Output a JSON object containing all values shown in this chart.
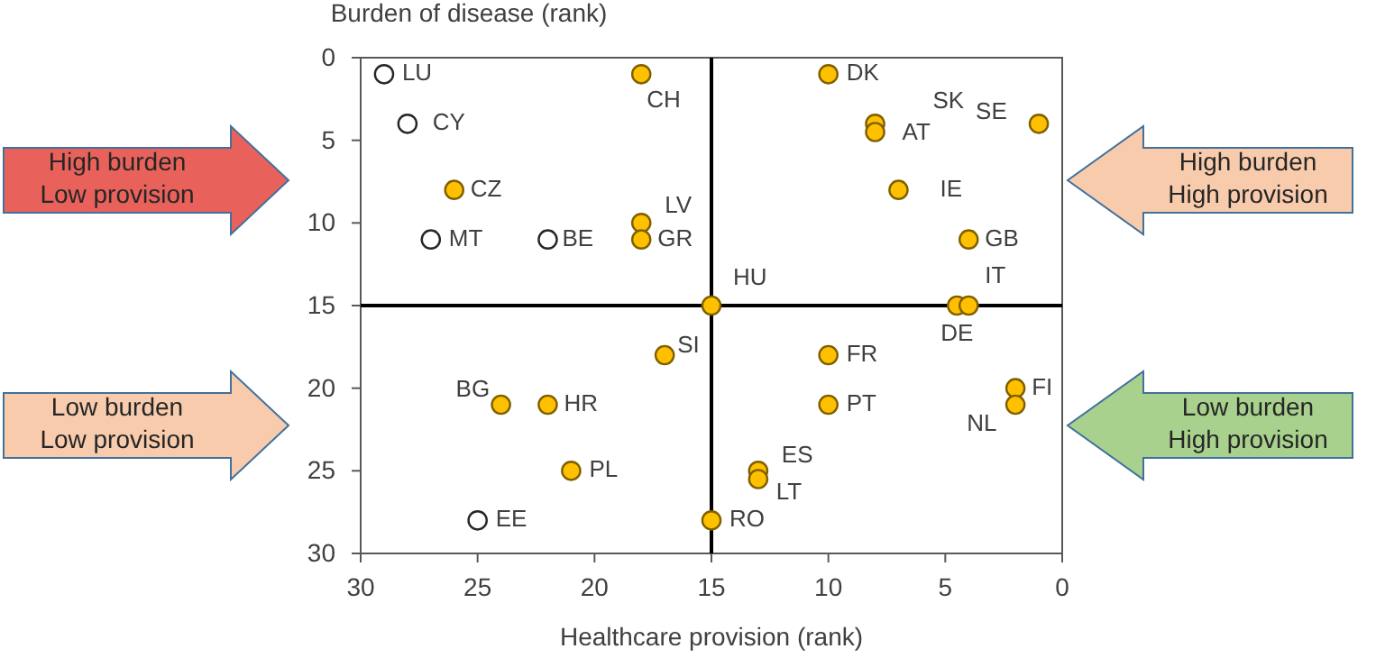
{
  "chart_data": {
    "type": "scatter",
    "xlabel": "Healthcare provision (rank)",
    "ylabel": "Burden of disease (rank)",
    "xlim": [
      30,
      0
    ],
    "ylim": [
      30,
      0
    ],
    "xticks": [
      30,
      25,
      20,
      15,
      10,
      5,
      0
    ],
    "yticks": [
      0,
      5,
      10,
      15,
      20,
      25,
      30
    ],
    "grid": false,
    "marker": "circle",
    "series": [
      {
        "color": "#ffc000",
        "x": [
          18,
          10,
          8,
          8,
          1,
          7,
          26,
          18,
          18,
          4,
          15,
          4.5,
          4,
          17,
          10,
          24,
          22,
          10,
          2,
          2,
          21,
          13,
          13,
          15
        ],
        "values": [
          1,
          1,
          4,
          4.5,
          4,
          8,
          8,
          10,
          11,
          11,
          15,
          15,
          15,
          18,
          18,
          21,
          21,
          21,
          20,
          21,
          25,
          25,
          25.5,
          28
        ]
      },
      {
        "color": "#ffffff",
        "x": [
          29,
          28,
          27,
          22,
          25
        ],
        "values": [
          1,
          4,
          11,
          11,
          28
        ]
      },
      {
        "type": "line",
        "marker": "none",
        "color": "#000000",
        "x": [
          15,
          15
        ],
        "values": [
          0,
          30
        ]
      },
      {
        "type": "line",
        "marker": "none",
        "color": "#000000",
        "x": [
          30,
          0
        ],
        "values": [
          15,
          15
        ]
      }
    ],
    "annotations": [
      {
        "text": "CH",
        "x": 18,
        "y": 1
      },
      {
        "text": "DK",
        "x": 10,
        "y": 1
      },
      {
        "text": "SK",
        "x": 8,
        "y": 4
      },
      {
        "text": "AT",
        "x": 8,
        "y": 4.5
      },
      {
        "text": "SE",
        "x": 1,
        "y": 4
      },
      {
        "text": "IE",
        "x": 7,
        "y": 8
      },
      {
        "text": "CZ",
        "x": 26,
        "y": 8
      },
      {
        "text": "LV",
        "x": 18,
        "y": 10
      },
      {
        "text": "GR",
        "x": 18,
        "y": 11
      },
      {
        "text": "GB",
        "x": 4,
        "y": 11
      },
      {
        "text": "HU",
        "x": 15,
        "y": 15
      },
      {
        "text": "DE",
        "x": 4.5,
        "y": 15
      },
      {
        "text": "IT",
        "x": 4,
        "y": 15
      },
      {
        "text": "SI",
        "x": 17,
        "y": 18
      },
      {
        "text": "FR",
        "x": 10,
        "y": 18
      },
      {
        "text": "BG",
        "x": 24,
        "y": 21
      },
      {
        "text": "HR",
        "x": 22,
        "y": 21
      },
      {
        "text": "PT",
        "x": 10,
        "y": 21
      },
      {
        "text": "FI",
        "x": 2,
        "y": 20
      },
      {
        "text": "NL",
        "x": 2,
        "y": 21
      },
      {
        "text": "PL",
        "x": 21,
        "y": 25
      },
      {
        "text": "ES",
        "x": 13,
        "y": 25
      },
      {
        "text": "LT",
        "x": 13,
        "y": 25.5
      },
      {
        "text": "RO",
        "x": 15,
        "y": 28
      },
      {
        "text": "LU",
        "x": 29,
        "y": 1
      },
      {
        "text": "CY",
        "x": 28,
        "y": 4
      },
      {
        "text": "MT",
        "x": 27,
        "y": 11
      },
      {
        "text": "BE",
        "x": 22,
        "y": 11
      },
      {
        "text": "EE",
        "x": 25,
        "y": 28
      },
      "High burden\nLow provision",
      "High burden\nHigh provision",
      "Low burden\nLow provision",
      "Low burden\nHigh provision"
    ]
  }
}
